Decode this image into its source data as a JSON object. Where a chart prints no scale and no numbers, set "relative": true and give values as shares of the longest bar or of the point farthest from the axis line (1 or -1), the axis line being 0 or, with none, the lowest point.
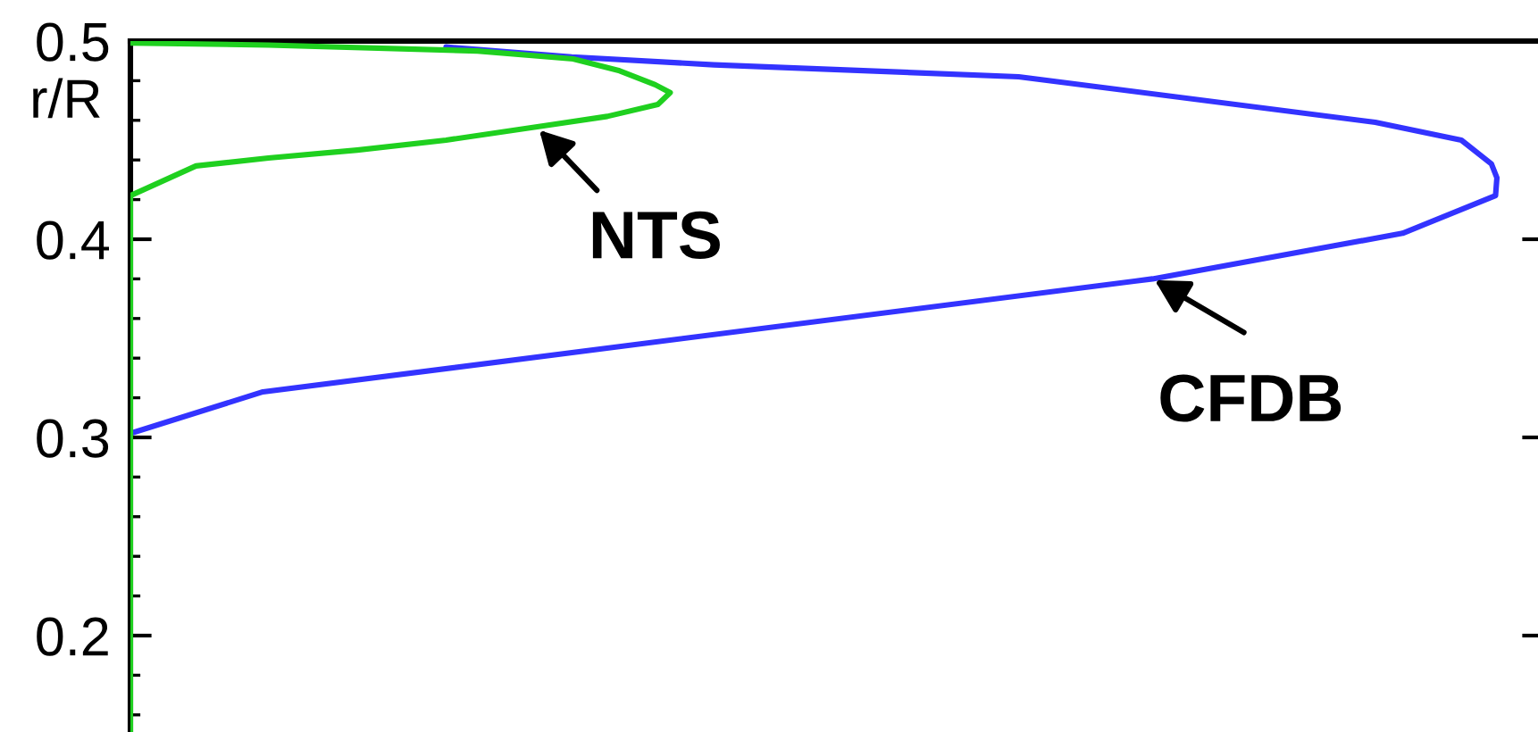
{
  "chart_data": {
    "type": "line",
    "orientation": "horizontal",
    "relative": true,
    "ylabel": "r/R",
    "ylim": [
      0.15,
      0.5
    ],
    "yticks": [
      0.2,
      0.3,
      0.4,
      0.5
    ],
    "tick_labels": "y",
    "annotations": [
      {
        "text": "NTS",
        "x": 0.298,
        "y": 0.456
      },
      {
        "text": "CFDB",
        "x": 0.748,
        "y": 0.38
      }
    ],
    "series": [
      {
        "color": "#3333ff",
        "x": [
          0.302,
          0.323,
          0.38,
          0.403,
          0.422,
          0.431,
          0.438,
          0.45,
          0.459,
          0.482,
          0.488,
          0.492,
          0.497
        ],
        "values": [
          0,
          0.097,
          0.748,
          0.931,
          0.999,
          1.0,
          0.996,
          0.974,
          0.911,
          0.65,
          0.427,
          0.323,
          0.231
        ]
      },
      {
        "color": "#1fd01f",
        "x": [
          0.15,
          0.422,
          0.437,
          0.441,
          0.445,
          0.45,
          0.458,
          0.462,
          0.468,
          0.474,
          0.478,
          0.485,
          0.491,
          0.495,
          0.498,
          0.499
        ],
        "values": [
          0,
          0,
          0.048,
          0.101,
          0.166,
          0.231,
          0.31,
          0.349,
          0.386,
          0.395,
          0.384,
          0.358,
          0.324,
          0.254,
          0.101,
          0
        ]
      }
    ]
  }
}
